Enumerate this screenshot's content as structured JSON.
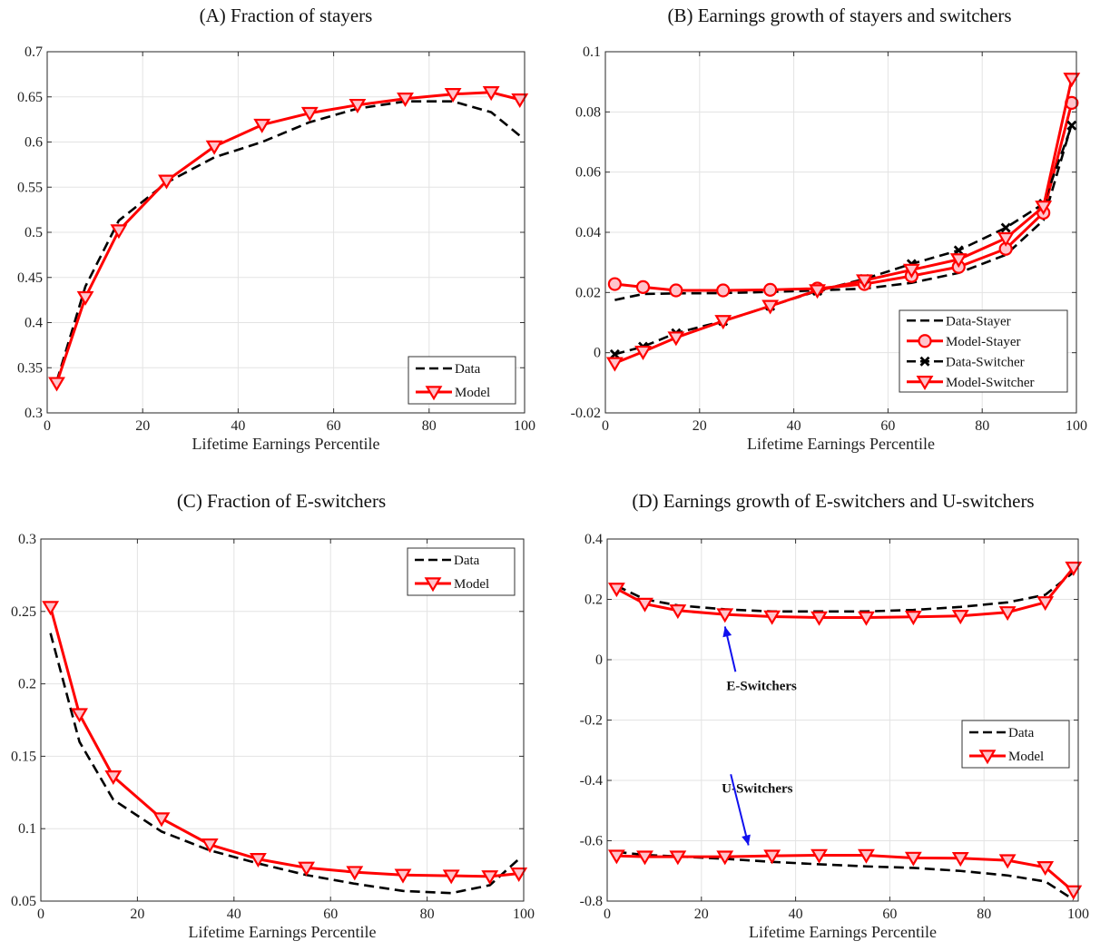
{
  "chart_data": [
    {
      "type": "line",
      "panel": "A",
      "title": "(A) Fraction of stayers",
      "xlabel": "Lifetime Earnings Percentile",
      "ylabel": "",
      "xlim": [
        0,
        100
      ],
      "ylim": [
        0.3,
        0.7
      ],
      "xticks": [
        0,
        20,
        40,
        60,
        80,
        100
      ],
      "xtick_labels": [
        "0",
        "20",
        "40",
        "60",
        "80",
        "100"
      ],
      "yticks": [
        0.3,
        0.35,
        0.4,
        0.45,
        0.5,
        0.55,
        0.6,
        0.65,
        0.7
      ],
      "ytick_labels": [
        "0.3",
        "0.35",
        "0.4",
        "0.45",
        "0.5",
        "0.55",
        "0.6",
        "0.65",
        "0.7"
      ],
      "grid": true,
      "legend_position": "bottom-right",
      "series": [
        {
          "name": "Data",
          "style": "dashed",
          "color": "#000000",
          "marker": "none",
          "x": [
            2,
            8,
            15,
            25,
            35,
            45,
            55,
            65,
            75,
            85,
            93,
            99
          ],
          "y": [
            0.335,
            0.44,
            0.513,
            0.555,
            0.583,
            0.6,
            0.622,
            0.637,
            0.645,
            0.645,
            0.633,
            0.607
          ]
        },
        {
          "name": "Model",
          "style": "solid",
          "color": "#ff0000",
          "marker": "triangle-down",
          "x": [
            2,
            8,
            15,
            25,
            35,
            45,
            55,
            65,
            75,
            85,
            93,
            99
          ],
          "y": [
            0.333,
            0.428,
            0.502,
            0.557,
            0.595,
            0.619,
            0.632,
            0.641,
            0.648,
            0.653,
            0.655,
            0.647
          ]
        }
      ]
    },
    {
      "type": "line",
      "panel": "B",
      "title": "(B) Earnings growth of stayers and switchers",
      "xlabel": "Lifetime Earnings Percentile",
      "ylabel": "",
      "xlim": [
        0,
        100
      ],
      "ylim": [
        -0.02,
        0.1
      ],
      "xticks": [
        0,
        20,
        40,
        60,
        80,
        100
      ],
      "xtick_labels": [
        "0",
        "20",
        "40",
        "60",
        "80",
        "100"
      ],
      "yticks": [
        -0.02,
        0,
        0.02,
        0.04,
        0.06,
        0.08,
        0.1
      ],
      "ytick_labels": [
        "-0.02",
        "0",
        "0.02",
        "0.04",
        "0.06",
        "0.08",
        "0.1"
      ],
      "grid": true,
      "legend_position": "middle-right",
      "series": [
        {
          "name": "Data-Stayer",
          "style": "dashed",
          "color": "#000000",
          "marker": "none",
          "x": [
            2,
            8,
            15,
            25,
            35,
            45,
            55,
            65,
            75,
            85,
            93,
            99
          ],
          "y": [
            0.0175,
            0.0195,
            0.0197,
            0.0198,
            0.0202,
            0.0207,
            0.0213,
            0.0232,
            0.0265,
            0.0325,
            0.044,
            0.076
          ]
        },
        {
          "name": "Model-Stayer",
          "style": "solid",
          "color": "#ff0000",
          "marker": "circle",
          "x": [
            2,
            8,
            15,
            25,
            35,
            45,
            55,
            65,
            75,
            85,
            93,
            99
          ],
          "y": [
            0.0228,
            0.0218,
            0.0207,
            0.0207,
            0.0209,
            0.0213,
            0.0228,
            0.0255,
            0.0285,
            0.0345,
            0.0465,
            0.083
          ]
        },
        {
          "name": "Data-Switcher",
          "style": "dashed",
          "color": "#000000",
          "marker": "x",
          "x": [
            2,
            8,
            15,
            25,
            35,
            45,
            55,
            65,
            75,
            85,
            93,
            99
          ],
          "y": [
            -0.0005,
            0.002,
            0.0065,
            0.0105,
            0.0155,
            0.0205,
            0.0245,
            0.0295,
            0.034,
            0.0415,
            0.0495,
            0.0755
          ]
        },
        {
          "name": "Model-Switcher",
          "style": "solid",
          "color": "#ff0000",
          "marker": "triangle-down",
          "x": [
            2,
            8,
            15,
            25,
            35,
            45,
            55,
            65,
            75,
            85,
            93,
            99
          ],
          "y": [
            -0.0035,
            0.0003,
            0.005,
            0.0105,
            0.0155,
            0.0207,
            0.024,
            0.0275,
            0.031,
            0.038,
            0.0485,
            0.091
          ]
        }
      ]
    },
    {
      "type": "line",
      "panel": "C",
      "title": "(C) Fraction of E-switchers",
      "xlabel": "Lifetime Earnings Percentile",
      "ylabel": "",
      "xlim": [
        0,
        100
      ],
      "ylim": [
        0.05,
        0.3
      ],
      "xticks": [
        0,
        20,
        40,
        60,
        80,
        100
      ],
      "xtick_labels": [
        "0",
        "20",
        "40",
        "60",
        "80",
        "100"
      ],
      "yticks": [
        0.05,
        0.1,
        0.15,
        0.2,
        0.25,
        0.3
      ],
      "ytick_labels": [
        "0.05",
        "0.1",
        "0.15",
        "0.2",
        "0.25",
        "0.3"
      ],
      "grid": true,
      "legend_position": "top-right",
      "series": [
        {
          "name": "Data",
          "style": "dashed",
          "color": "#000000",
          "marker": "none",
          "x": [
            2,
            8,
            15,
            25,
            35,
            45,
            55,
            65,
            75,
            85,
            93,
            99
          ],
          "y": [
            0.235,
            0.16,
            0.12,
            0.098,
            0.085,
            0.076,
            0.068,
            0.062,
            0.057,
            0.0555,
            0.061,
            0.079
          ]
        },
        {
          "name": "Model",
          "style": "solid",
          "color": "#ff0000",
          "marker": "triangle-down",
          "x": [
            2,
            8,
            15,
            25,
            35,
            45,
            55,
            65,
            75,
            85,
            93,
            99
          ],
          "y": [
            0.253,
            0.179,
            0.136,
            0.107,
            0.089,
            0.079,
            0.073,
            0.07,
            0.068,
            0.0675,
            0.067,
            0.069
          ]
        }
      ]
    },
    {
      "type": "line",
      "panel": "D",
      "title": "(D) Earnings growth of E-switchers and U-switchers",
      "xlabel": "Lifetime Earnings Percentile",
      "ylabel": "",
      "xlim": [
        0,
        100
      ],
      "ylim": [
        -0.8,
        0.4
      ],
      "xticks": [
        0,
        20,
        40,
        60,
        80,
        100
      ],
      "xtick_labels": [
        "0",
        "20",
        "40",
        "60",
        "80",
        "100"
      ],
      "yticks": [
        -0.8,
        -0.6,
        -0.4,
        -0.2,
        0,
        0.2,
        0.4
      ],
      "ytick_labels": [
        "-0.8",
        "-0.6",
        "-0.4",
        "-0.2",
        "0",
        "0.2",
        "0.4"
      ],
      "grid": true,
      "legend_position": "middle-right",
      "annotations": [
        {
          "text": "E-Switchers",
          "x": 23,
          "y": -0.1,
          "arrow_to": [
            25,
            0.11
          ]
        },
        {
          "text": "U-Switchers",
          "x": 22,
          "y": -0.44,
          "arrow_to": [
            30,
            -0.615
          ]
        }
      ],
      "series": [
        {
          "name": "Data",
          "style": "dashed",
          "color": "#000000",
          "marker": "none",
          "group": "E-Switchers",
          "x": [
            2,
            8,
            15,
            25,
            35,
            45,
            55,
            65,
            75,
            85,
            93,
            99
          ],
          "y": [
            0.245,
            0.2,
            0.18,
            0.167,
            0.16,
            0.16,
            0.16,
            0.165,
            0.175,
            0.19,
            0.215,
            0.29
          ]
        },
        {
          "name": "Model",
          "style": "solid",
          "color": "#ff0000",
          "marker": "triangle-down",
          "group": "E-Switchers",
          "x": [
            2,
            8,
            15,
            25,
            35,
            45,
            55,
            65,
            75,
            85,
            93,
            99
          ],
          "y": [
            0.235,
            0.185,
            0.163,
            0.15,
            0.143,
            0.14,
            0.14,
            0.142,
            0.145,
            0.157,
            0.19,
            0.305
          ]
        },
        {
          "name": "Data",
          "style": "dashed",
          "color": "#000000",
          "marker": "none",
          "group": "U-Switchers",
          "x": [
            2,
            8,
            15,
            25,
            35,
            45,
            55,
            65,
            75,
            85,
            93,
            99
          ],
          "y": [
            -0.637,
            -0.647,
            -0.652,
            -0.66,
            -0.67,
            -0.678,
            -0.685,
            -0.69,
            -0.7,
            -0.715,
            -0.735,
            -0.795
          ]
        },
        {
          "name": "Model",
          "style": "solid",
          "color": "#ff0000",
          "marker": "triangle-down",
          "group": "U-Switchers",
          "x": [
            2,
            8,
            15,
            25,
            35,
            45,
            55,
            65,
            75,
            85,
            93,
            99
          ],
          "y": [
            -0.65,
            -0.653,
            -0.653,
            -0.653,
            -0.65,
            -0.648,
            -0.648,
            -0.657,
            -0.658,
            -0.665,
            -0.688,
            -0.768
          ]
        }
      ]
    }
  ]
}
